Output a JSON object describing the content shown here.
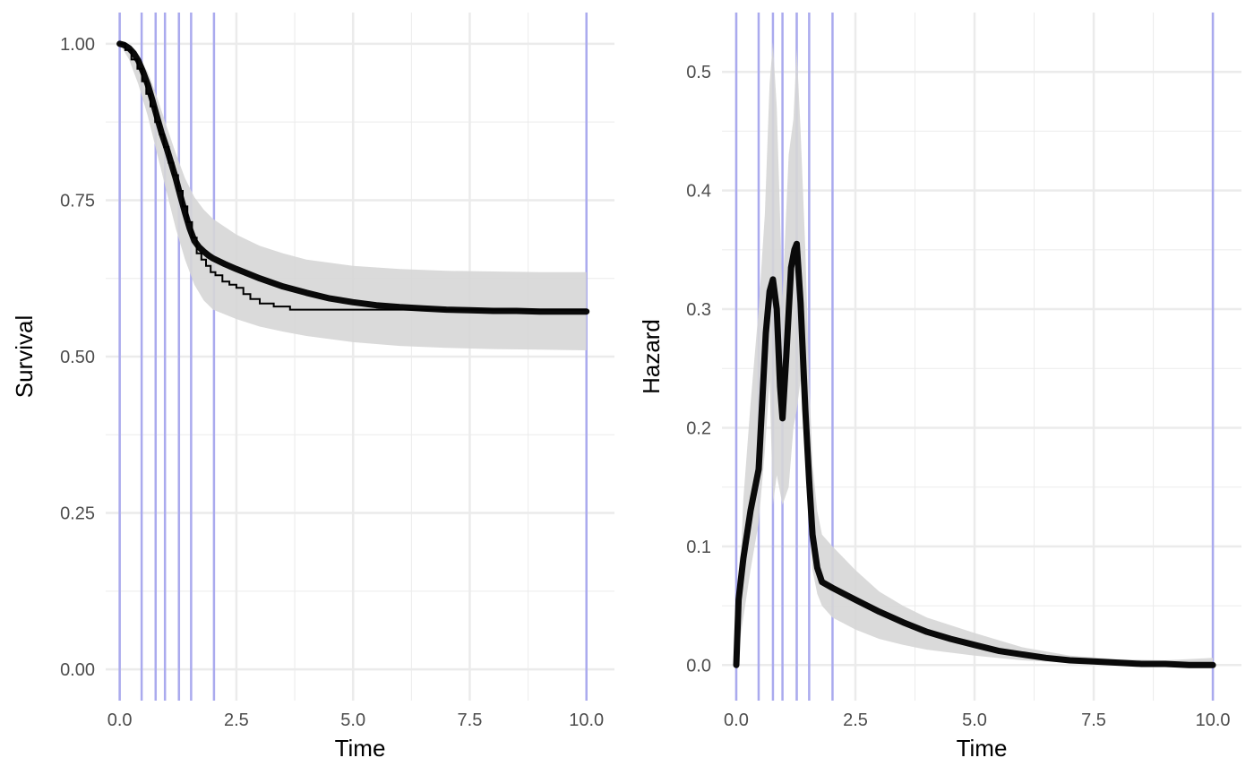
{
  "colors": {
    "grid_major": "#ebebeb",
    "knot_line": "#aaaaee",
    "ribbon": "#d6d6d6",
    "fitted": "#0a0a0a",
    "km": "#000000"
  },
  "chart_data": [
    {
      "type": "line",
      "name": "survival-panel",
      "xlabel": "Time",
      "ylabel": "Survival",
      "xlim": [
        -0.3,
        10.6
      ],
      "ylim": [
        -0.05,
        1.05
      ],
      "x_ticks": [
        0,
        2.5,
        5,
        7.5,
        10
      ],
      "x_tick_labels": [
        "0.0",
        "2.5",
        "5.0",
        "7.5",
        "10.0"
      ],
      "y_ticks": [
        0,
        0.25,
        0.5,
        0.75,
        1
      ],
      "y_tick_labels": [
        "0.00",
        "0.25",
        "0.50",
        "0.75",
        "1.00"
      ],
      "grid": true,
      "knots": [
        0,
        0.47,
        0.77,
        0.97,
        1.27,
        1.53,
        2.02,
        10
      ],
      "ribbon": {
        "x": [
          0,
          0.2,
          0.4,
          0.6,
          0.8,
          1.0,
          1.2,
          1.4,
          1.6,
          1.8,
          2.0,
          2.5,
          3,
          3.5,
          4,
          5,
          6,
          7,
          8,
          9,
          10
        ],
        "lower": [
          1.0,
          0.975,
          0.935,
          0.885,
          0.825,
          0.765,
          0.705,
          0.655,
          0.615,
          0.59,
          0.575,
          0.56,
          0.548,
          0.54,
          0.533,
          0.523,
          0.517,
          0.514,
          0.512,
          0.511,
          0.51
        ],
        "upper": [
          1.0,
          0.995,
          0.98,
          0.955,
          0.915,
          0.87,
          0.825,
          0.785,
          0.755,
          0.735,
          0.72,
          0.695,
          0.677,
          0.665,
          0.655,
          0.645,
          0.64,
          0.637,
          0.636,
          0.635,
          0.635
        ]
      },
      "series": [
        {
          "role": "fitted",
          "x": [
            0,
            0.1,
            0.2,
            0.3,
            0.4,
            0.5,
            0.6,
            0.7,
            0.8,
            0.9,
            1.0,
            1.1,
            1.2,
            1.3,
            1.4,
            1.5,
            1.6,
            1.7,
            1.8,
            1.9,
            2.0,
            2.25,
            2.5,
            3,
            3.5,
            4,
            4.5,
            5,
            5.5,
            6,
            6.5,
            7,
            7.5,
            8,
            8.5,
            9,
            9.5,
            10
          ],
          "y": [
            1.0,
            0.998,
            0.993,
            0.985,
            0.973,
            0.955,
            0.935,
            0.91,
            0.883,
            0.857,
            0.835,
            0.81,
            0.785,
            0.757,
            0.73,
            0.705,
            0.685,
            0.675,
            0.668,
            0.662,
            0.657,
            0.648,
            0.64,
            0.625,
            0.612,
            0.602,
            0.593,
            0.587,
            0.582,
            0.579,
            0.577,
            0.575,
            0.574,
            0.573,
            0.573,
            0.572,
            0.572,
            0.572
          ]
        },
        {
          "role": "kaplan-meier",
          "x": [
            0,
            0.12,
            0.25,
            0.38,
            0.48,
            0.57,
            0.66,
            0.76,
            0.86,
            0.95,
            1.05,
            1.15,
            1.25,
            1.35,
            1.45,
            1.55,
            1.65,
            1.75,
            1.85,
            1.95,
            2.05,
            2.2,
            2.35,
            2.5,
            2.65,
            2.8,
            3.0,
            3.3,
            3.65,
            10
          ],
          "y": [
            1.0,
            0.99,
            0.975,
            0.96,
            0.94,
            0.92,
            0.9,
            0.875,
            0.855,
            0.835,
            0.81,
            0.79,
            0.765,
            0.74,
            0.715,
            0.69,
            0.665,
            0.655,
            0.645,
            0.635,
            0.63,
            0.62,
            0.615,
            0.61,
            0.6,
            0.592,
            0.585,
            0.58,
            0.575,
            0.575
          ]
        }
      ]
    },
    {
      "type": "line",
      "name": "hazard-panel",
      "xlabel": "Time",
      "ylabel": "Hazard",
      "xlim": [
        -0.3,
        10.6
      ],
      "ylim": [
        -0.03,
        0.55
      ],
      "x_ticks": [
        0,
        2.5,
        5,
        7.5,
        10
      ],
      "x_tick_labels": [
        "0.0",
        "2.5",
        "5.0",
        "7.5",
        "10.0"
      ],
      "y_ticks": [
        0,
        0.1,
        0.2,
        0.3,
        0.4,
        0.5
      ],
      "y_tick_labels": [
        "0.0",
        "0.1",
        "0.2",
        "0.3",
        "0.4",
        "0.5"
      ],
      "grid": true,
      "knots": [
        0,
        0.47,
        0.77,
        0.97,
        1.27,
        1.53,
        2.02,
        10
      ],
      "ribbon": {
        "x": [
          0,
          0.15,
          0.3,
          0.47,
          0.6,
          0.7,
          0.77,
          0.85,
          0.97,
          1.1,
          1.2,
          1.27,
          1.35,
          1.45,
          1.53,
          1.6,
          1.7,
          1.8,
          2.02,
          2.5,
          3,
          3.5,
          4,
          5,
          6,
          7,
          8,
          9,
          10
        ],
        "lower": [
          0,
          0.04,
          0.08,
          0.12,
          0.18,
          0.24,
          0.135,
          0.16,
          0.135,
          0.15,
          0.2,
          0.215,
          0.24,
          0.19,
          0.12,
          0.08,
          0.06,
          0.05,
          0.04,
          0.03,
          0.022,
          0.017,
          0.013,
          0.008,
          0.004,
          0.002,
          0.001,
          0.0,
          0.0
        ],
        "upper": [
          0,
          0.14,
          0.22,
          0.3,
          0.38,
          0.49,
          0.525,
          0.47,
          0.31,
          0.43,
          0.46,
          0.52,
          0.45,
          0.35,
          0.24,
          0.17,
          0.13,
          0.11,
          0.1,
          0.08,
          0.062,
          0.05,
          0.04,
          0.027,
          0.015,
          0.008,
          0.005,
          0.004,
          0.006
        ]
      },
      "series": [
        {
          "role": "fitted",
          "x": [
            0,
            0.05,
            0.15,
            0.3,
            0.47,
            0.55,
            0.62,
            0.7,
            0.77,
            0.85,
            0.92,
            0.97,
            1.05,
            1.15,
            1.22,
            1.27,
            1.35,
            1.45,
            1.53,
            1.6,
            1.7,
            1.8,
            2.02,
            2.5,
            3,
            3.5,
            4,
            4.5,
            5,
            5.5,
            6,
            6.5,
            7,
            7.5,
            8,
            8.5,
            9,
            9.5,
            10
          ],
          "y": [
            0.0,
            0.055,
            0.09,
            0.13,
            0.165,
            0.225,
            0.28,
            0.315,
            0.325,
            0.3,
            0.235,
            0.208,
            0.26,
            0.335,
            0.35,
            0.355,
            0.305,
            0.215,
            0.155,
            0.11,
            0.082,
            0.07,
            0.065,
            0.055,
            0.045,
            0.036,
            0.028,
            0.022,
            0.017,
            0.012,
            0.009,
            0.006,
            0.004,
            0.003,
            0.002,
            0.001,
            0.001,
            0.0,
            0.0
          ]
        }
      ]
    }
  ]
}
